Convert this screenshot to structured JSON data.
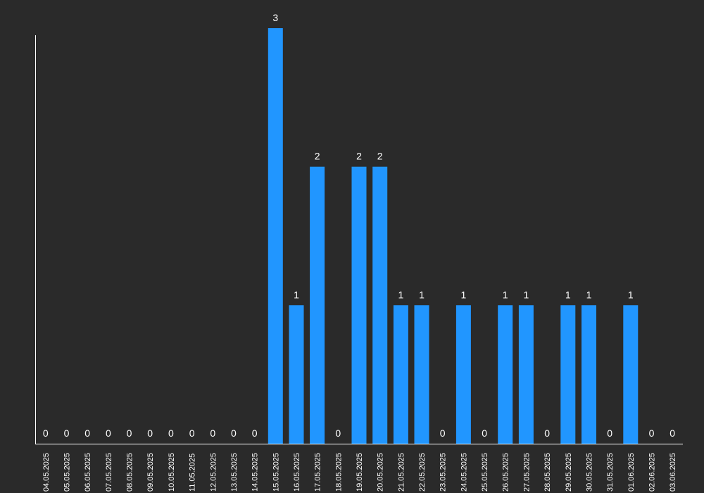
{
  "chart_data": {
    "type": "bar",
    "title": "",
    "xlabel": "",
    "ylabel": "",
    "ylim": [
      0,
      3
    ],
    "grid": false,
    "legend": "none",
    "colors": {
      "background": "#2a2a2a",
      "bar": "#2196ff",
      "axis": "#ffffff",
      "text": "#ffffff"
    },
    "categories": [
      "04.05.2025",
      "05.05.2025",
      "06.05.2025",
      "07.05.2025",
      "08.05.2025",
      "09.05.2025",
      "10.05.2025",
      "11.05.2025",
      "12.05.2025",
      "13.05.2025",
      "14.05.2025",
      "15.05.2025",
      "16.05.2025",
      "17.05.2025",
      "18.05.2025",
      "19.05.2025",
      "20.05.2025",
      "21.05.2025",
      "22.05.2025",
      "23.05.2025",
      "24.05.2025",
      "25.05.2025",
      "26.05.2025",
      "27.05.2025",
      "28.05.2025",
      "29.05.2025",
      "30.05.2025",
      "31.05.2025",
      "01.06.2025",
      "02.06.2025",
      "03.06.2025"
    ],
    "values": [
      0,
      0,
      0,
      0,
      0,
      0,
      0,
      0,
      0,
      0,
      0,
      3,
      1,
      2,
      0,
      2,
      2,
      1,
      1,
      0,
      1,
      0,
      1,
      1,
      0,
      1,
      1,
      0,
      1,
      0,
      0
    ]
  }
}
